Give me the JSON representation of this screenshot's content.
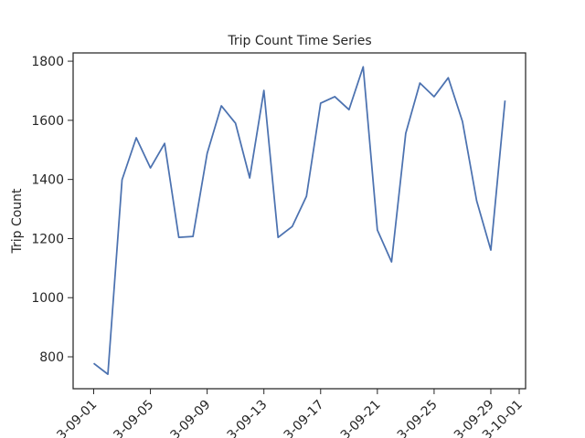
{
  "chart_data": {
    "type": "line",
    "title": "Trip Count Time Series",
    "ylabel": "Trip Count",
    "x": [
      1,
      2,
      3,
      4,
      5,
      6,
      7,
      8,
      9,
      10,
      11,
      12,
      13,
      14,
      15,
      16,
      17,
      18,
      19,
      20,
      21,
      22,
      23,
      24,
      25,
      26,
      27,
      28,
      29,
      30
    ],
    "series": [
      {
        "name": "Trip Count",
        "color": "#4c72b0",
        "values": [
          778,
          741,
          1399,
          1541,
          1439,
          1522,
          1204,
          1207,
          1488,
          1649,
          1590,
          1405,
          1701,
          1204,
          1241,
          1343,
          1658,
          1680,
          1636,
          1781,
          1229,
          1121,
          1556,
          1726,
          1680,
          1744,
          1596,
          1328,
          1161,
          1667
        ]
      }
    ],
    "xlim": [
      -0.45,
      31.45
    ],
    "xticks": [
      {
        "value": 1,
        "label": "3-09-01"
      },
      {
        "value": 5,
        "label": "3-09-05"
      },
      {
        "value": 9,
        "label": "3-09-09"
      },
      {
        "value": 13,
        "label": "3-09-13"
      },
      {
        "value": 17,
        "label": "3-09-17"
      },
      {
        "value": 21,
        "label": "3-09-21"
      },
      {
        "value": 25,
        "label": "3-09-25"
      },
      {
        "value": 29,
        "label": "3-09-29"
      },
      {
        "value": 31,
        "label": "3-10-01"
      }
    ],
    "ylim": [
      692,
      1828
    ],
    "yticks": [
      800,
      1000,
      1200,
      1400,
      1600,
      1800
    ],
    "grid": false
  }
}
